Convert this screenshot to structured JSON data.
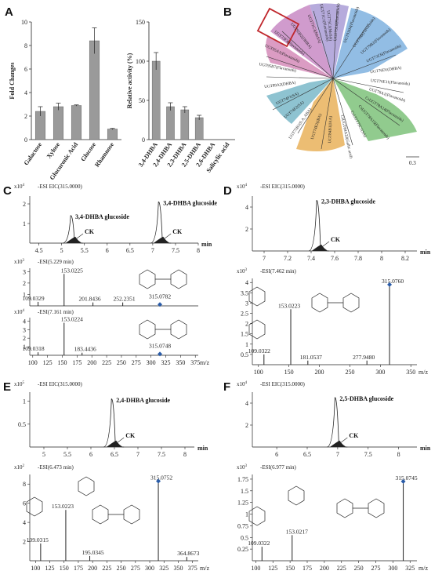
{
  "panels": {
    "A": "A",
    "B": "B",
    "C": "C",
    "D": "D",
    "E": "E",
    "F": "F"
  },
  "panel_a": {
    "chart_data": [
      {
        "type": "bar",
        "categories": [
          "Galactose",
          "Xylose",
          "Glucuronic Acid",
          "Glucose",
          "Rhamnose"
        ],
        "values": [
          2.4,
          2.8,
          2.9,
          8.4,
          0.9
        ],
        "errors": [
          0.4,
          0.3,
          0.05,
          1.1,
          0.05
        ],
        "title": "",
        "xlabel": "",
        "ylabel": "Fold Changes",
        "ylim": [
          0,
          10
        ],
        "yticks": [
          0,
          2,
          4,
          6,
          8,
          10
        ],
        "bar_color": "#9a9a9a"
      },
      {
        "type": "bar",
        "categories": [
          "3,4-DHBA",
          "2,4-DHBA",
          "2,3-DHBA",
          "2,5-DHBA",
          "2,6-DHBA",
          "Salicylic acid"
        ],
        "values": [
          100,
          42,
          38,
          28,
          0,
          0
        ],
        "errors": [
          11,
          5,
          4,
          3,
          0,
          0
        ],
        "title": "",
        "xlabel": "",
        "ylabel": "Relative activity (%)",
        "ylim": [
          0,
          150
        ],
        "yticks": [
          0,
          50,
          100,
          150
        ],
        "bar_color": "#9a9a9a"
      }
    ]
  },
  "panel_b": {
    "scale_label": "0.3",
    "leaves": [
      "UGT75C1(MeSA)",
      "UGT75L6(Flavanoids)",
      "UGT91H4(Flavanoids)",
      "UGT79B(Flavanoids)",
      "UGT79B2(Flavanoids)",
      "UGT73C6(Flavanoids)",
      "UGT76D1(DHBA)",
      "UGT76E11(Flavanoids)",
      "UGT78A1(Flavanoids)",
      "CsUGT78A14(Flavanoids)",
      "CsUGT78A15(Flavanoids)",
      "CsUGT75C1(SA)",
      "CsUGT84A22(Gallic acid)",
      "UGT84B1(IAA)",
      "UGT74E2(IBA)",
      "UGT75B1(S.A, ABA)",
      "UGT74F2(SA)",
      "UGT74F1(SA)",
      "UGT89A2(DHBA)",
      "UGT95B7(Flavanoids)",
      "UGT95A1(Flavanoids)",
      "UGT73F3(Flavanoids)",
      "UGT71C3(MeSA)",
      "UGT71C1(Flavanoids)",
      "UGT95B2(DHBA)"
    ],
    "highlight": "UGT95B2(DHBA)"
  },
  "panel_c": {
    "eic": {
      "label": "-ESI EIC(315.0000)",
      "yexp": "x10",
      "ytick_labels": [
        "1",
        "2"
      ],
      "xtick_labels": [
        "4.5",
        "5",
        "5.5",
        "6",
        "6.5",
        "7",
        "7.5",
        "8"
      ],
      "xunit": "min",
      "peaks": [
        {
          "rt": 5.23,
          "label": "3,4-DHBA glucoside",
          "ck": "CK"
        },
        {
          "rt": 7.16,
          "label": "3,4-DHBA glucoside",
          "ck": "CK"
        }
      ]
    },
    "ms1": {
      "label": "-ESI(5.229 min)",
      "yexp": "x10",
      "ytick_labels": [
        "1",
        "2",
        "3"
      ],
      "peaks": [
        "109.0329",
        "153.0225",
        "201.8436",
        "252.2351",
        "315.0782"
      ]
    },
    "ms2": {
      "label": "-ESI(7.161 min)",
      "yexp": "x10",
      "ytick_labels": [
        "1",
        "2",
        "3",
        "4"
      ],
      "peaks": [
        "109.0318",
        "153.0224",
        "183.4436",
        "315.0748"
      ]
    },
    "mz_ticks": [
      "100",
      "125",
      "150",
      "175",
      "200",
      "225",
      "250",
      "275",
      "300",
      "325",
      "350",
      "375"
    ],
    "mz_unit": "m/z"
  },
  "panel_d": {
    "eic": {
      "label": "-ESI EIC(315.0000)",
      "yexp": "x10",
      "ytick_labels": [
        "2",
        "4"
      ],
      "xtick_labels": [
        "7",
        "7.2",
        "7.4",
        "7.6",
        "7.8",
        "8",
        "8.2"
      ],
      "xunit": "min",
      "peak_label": "2,3-DHBA glucoside",
      "ck": "CK"
    },
    "ms": {
      "label": "-ESI(7.462 min)",
      "yexp": "x10",
      "ytick_labels": [
        "0.5",
        "1",
        "1.5",
        "2",
        "2.5",
        "3",
        "3.5",
        "4"
      ],
      "peaks": [
        "109.0322",
        "153.0223",
        "181.0537",
        "277.9480",
        "315.0760"
      ],
      "mz_ticks": [
        "100",
        "150",
        "200",
        "250",
        "300",
        "350"
      ],
      "mz_unit": "m/z"
    }
  },
  "panel_e": {
    "eic": {
      "label": "-ESI EIC(315.0000)",
      "yexp": "x10",
      "ytick_labels": [
        "0.5",
        "1"
      ],
      "xtick_labels": [
        "5",
        "5.5",
        "6",
        "6.5",
        "7",
        "7.5",
        "8"
      ],
      "xunit": "min",
      "peak_label": "2,4-DHBA glucoside",
      "ck": "CK"
    },
    "ms": {
      "label": "-ESI(6.473 min)",
      "yexp": "x10",
      "ytick_labels": [
        "2",
        "4",
        "6",
        "8"
      ],
      "peaks": [
        "109.0315",
        "153.0223",
        "195.0345",
        "315.0752",
        "364.8673"
      ],
      "mz_ticks": [
        "100",
        "125",
        "150",
        "175",
        "200",
        "225",
        "250",
        "275",
        "300",
        "325",
        "350",
        "375"
      ],
      "mz_unit": "m/z"
    }
  },
  "panel_f": {
    "eic": {
      "label": "-ESI EIC(315.0000)",
      "yexp": "x10",
      "ytick_labels": [
        "2",
        "4"
      ],
      "xtick_labels": [
        "6",
        "6.5",
        "7",
        "7.5",
        "8"
      ],
      "xunit": "min",
      "peak_label": "2,5-DHBA glucoside",
      "ck": "CK"
    },
    "ms": {
      "label": "-ESI(6.977 min)",
      "yexp": "x10",
      "ytick_labels": [
        "0.25",
        "0.5",
        "0.75",
        "1",
        "1.25",
        "1.5",
        "1.75"
      ],
      "peaks": [
        "109.0322",
        "153.0217",
        "315.0745"
      ],
      "mz_ticks": [
        "100",
        "125",
        "150",
        "175",
        "200",
        "225",
        "250",
        "275",
        "300",
        "325"
      ],
      "mz_unit": "m/z"
    }
  }
}
